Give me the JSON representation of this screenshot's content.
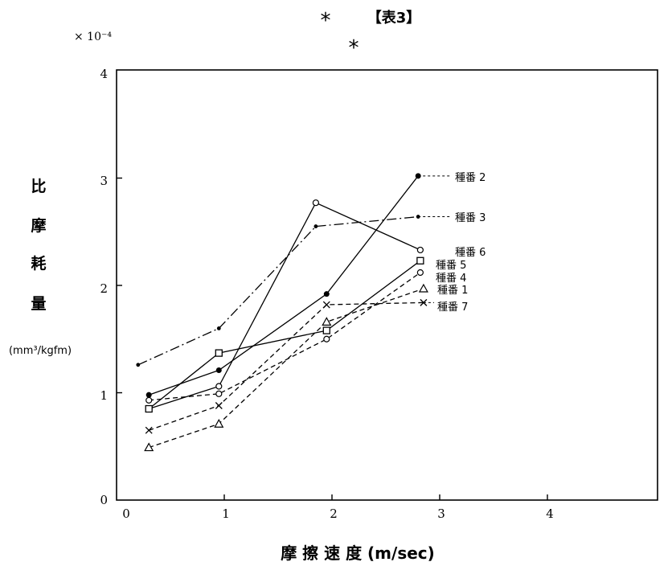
{
  "header": {
    "title": "【表3】",
    "marks": [
      "*",
      "*"
    ]
  },
  "chart_data": {
    "type": "line",
    "title": "【表3】",
    "scale_note": "× 10⁻⁴",
    "xlabel": "摩 擦 速 度 (m/sec)",
    "ylabel_chars": [
      "比",
      "摩",
      "耗",
      "量"
    ],
    "ylabel_unit": "(mm³/kgfm)",
    "xlim": [
      0,
      5
    ],
    "ylim": [
      0,
      4
    ],
    "x_ticks": [
      "0",
      "1",
      "2",
      "3",
      "4"
    ],
    "y_ticks": [
      "0",
      "1",
      "2",
      "3",
      "4"
    ],
    "grid": false,
    "legend": "labels at right end of each line",
    "series": [
      {
        "name": "種番 2",
        "marker": "filled-circle",
        "dash": "solid",
        "points": [
          [
            0.3,
            0.98
          ],
          [
            0.95,
            1.21
          ],
          [
            1.95,
            1.92
          ],
          [
            2.8,
            3.02
          ]
        ]
      },
      {
        "name": "種番 3",
        "marker": "small-dot",
        "dash": "dashdot",
        "points": [
          [
            0.2,
            1.26
          ],
          [
            0.95,
            1.6
          ],
          [
            1.85,
            2.55
          ],
          [
            2.8,
            2.64
          ]
        ]
      },
      {
        "name": "種番 6",
        "marker": "open-circle",
        "dash": "solid",
        "points": [
          [
            0.3,
            0.85
          ],
          [
            0.95,
            1.06
          ],
          [
            1.85,
            2.77
          ],
          [
            2.82,
            2.33
          ]
        ]
      },
      {
        "name": "種番 5",
        "marker": "open-square",
        "dash": "solid",
        "points": [
          [
            0.3,
            0.85
          ],
          [
            0.95,
            1.37
          ],
          [
            1.95,
            1.58
          ],
          [
            2.82,
            2.23
          ]
        ]
      },
      {
        "name": "種番 4",
        "marker": "open-circle",
        "dash": "dashed",
        "points": [
          [
            0.3,
            0.93
          ],
          [
            0.95,
            0.99
          ],
          [
            1.95,
            1.5
          ],
          [
            2.82,
            2.12
          ]
        ]
      },
      {
        "name": "種番 1",
        "marker": "open-triangle",
        "dash": "dashed",
        "points": [
          [
            0.3,
            0.49
          ],
          [
            0.95,
            0.71
          ],
          [
            1.95,
            1.66
          ],
          [
            2.85,
            1.97
          ]
        ]
      },
      {
        "name": "種番 7",
        "marker": "x",
        "dash": "dashed",
        "points": [
          [
            0.3,
            0.65
          ],
          [
            0.95,
            0.88
          ],
          [
            1.95,
            1.82
          ],
          [
            2.85,
            1.84
          ]
        ]
      }
    ],
    "series_labels": [
      "種番 2",
      "種番 3",
      "種番 6",
      "種番 5",
      "種番 4",
      "種番 1",
      "種番 7"
    ]
  }
}
